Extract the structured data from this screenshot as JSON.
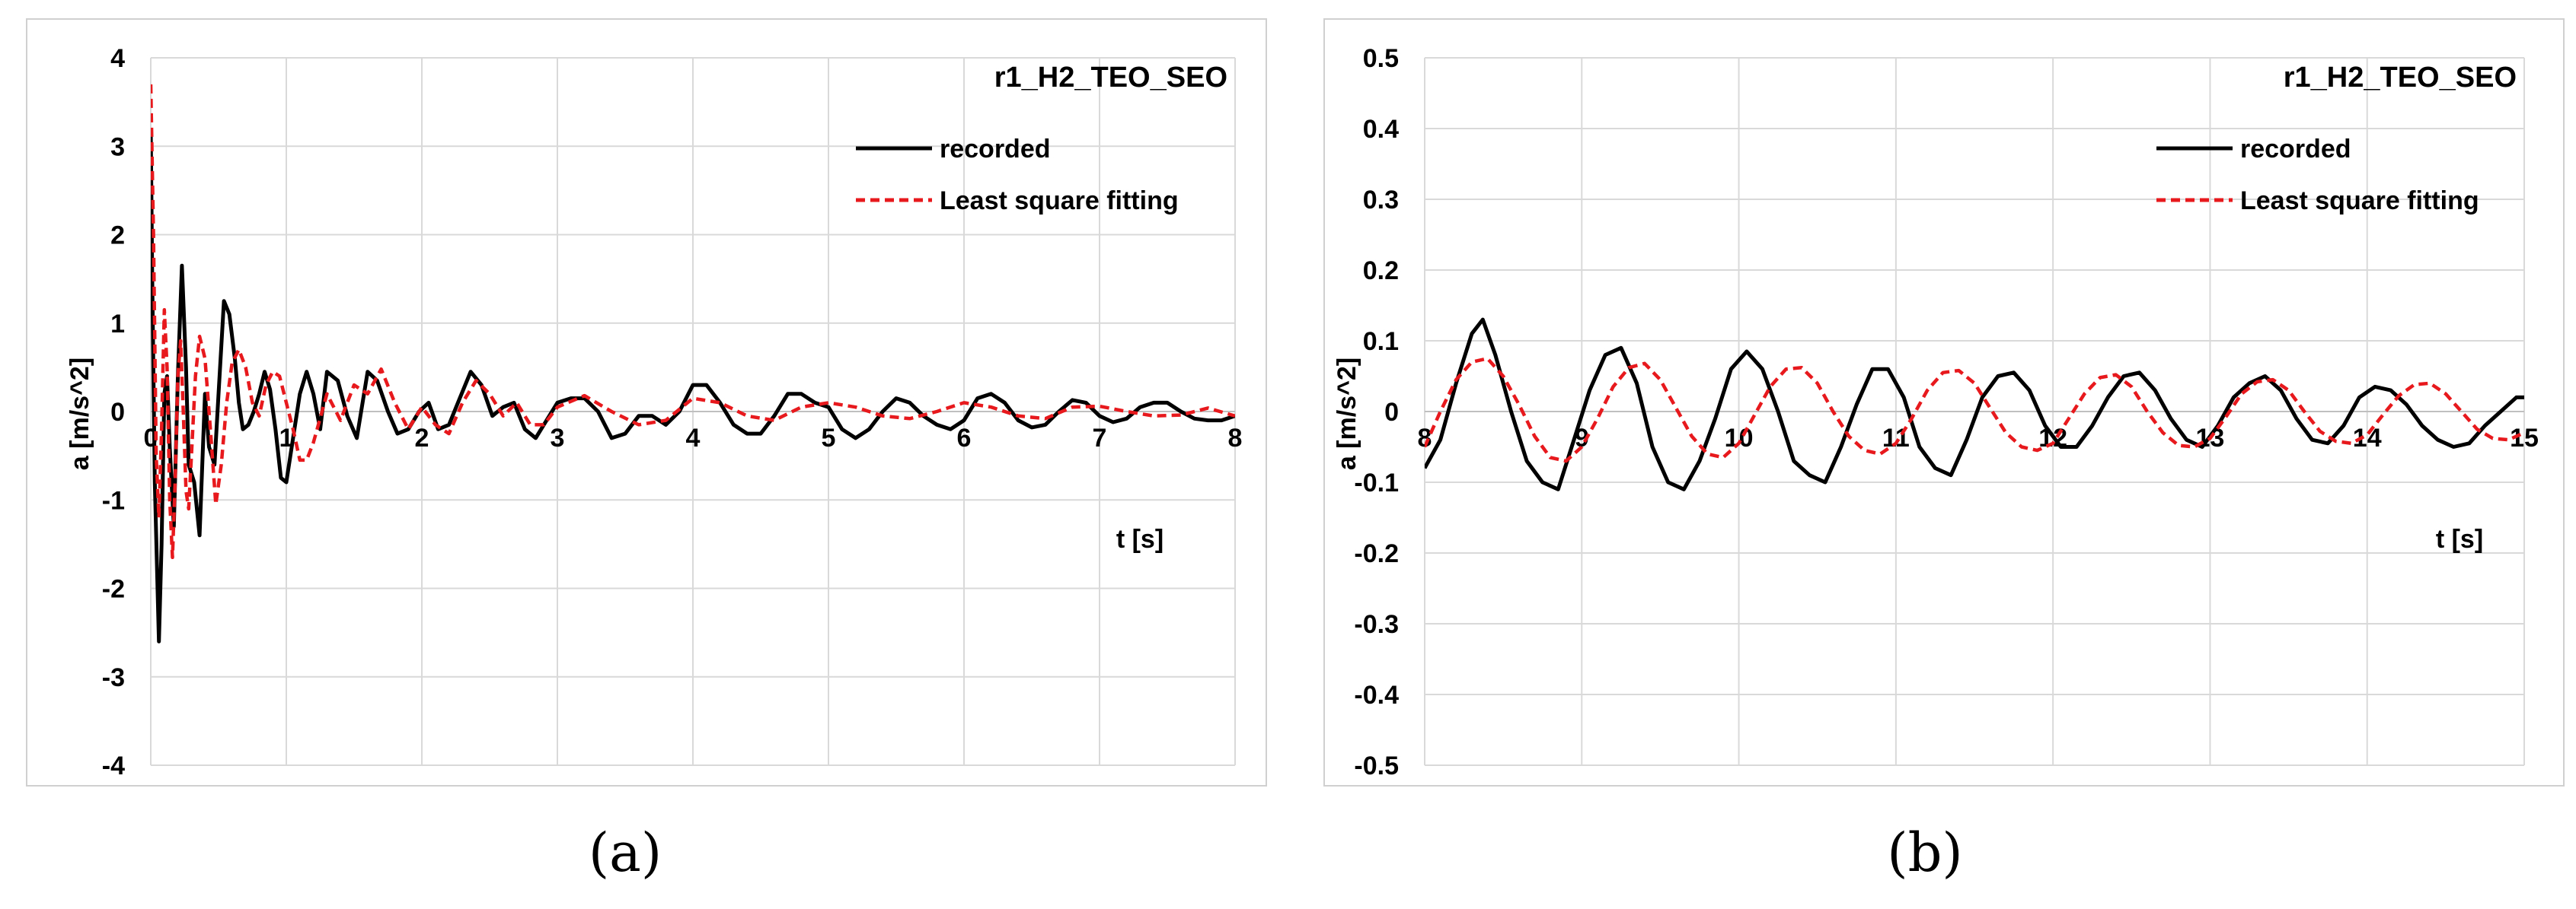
{
  "chart_data": [
    {
      "type": "line",
      "title": "r1_H2_TEO_SEO",
      "xlabel": "t [s]",
      "ylabel": "a [m/s^2]",
      "xlim": [
        0,
        8
      ],
      "ylim": [
        -4,
        4
      ],
      "xticks": [
        0,
        1,
        2,
        3,
        4,
        5,
        6,
        7,
        8
      ],
      "yticks": [
        -4,
        -3,
        -2,
        -1,
        0,
        1,
        2,
        3,
        4
      ],
      "grid": true,
      "legend_position": "top-right",
      "series": [
        {
          "name": "recorded",
          "color": "#000000",
          "style": "solid",
          "x": [
            0,
            0.01,
            0.03,
            0.06,
            0.08,
            0.1,
            0.12,
            0.14,
            0.17,
            0.2,
            0.23,
            0.26,
            0.28,
            0.32,
            0.36,
            0.4,
            0.43,
            0.47,
            0.5,
            0.54,
            0.58,
            0.62,
            0.65,
            0.68,
            0.72,
            0.76,
            0.8,
            0.84,
            0.88,
            0.92,
            0.96,
            1.0,
            1.05,
            1.1,
            1.15,
            1.2,
            1.25,
            1.3,
            1.38,
            1.45,
            1.52,
            1.6,
            1.67,
            1.75,
            1.82,
            1.9,
            1.98,
            2.05,
            2.12,
            2.2,
            2.28,
            2.36,
            2.44,
            2.52,
            2.6,
            2.68,
            2.76,
            2.84,
            2.92,
            3.0,
            3.1,
            3.2,
            3.3,
            3.4,
            3.5,
            3.6,
            3.7,
            3.8,
            3.9,
            4.0,
            4.1,
            4.2,
            4.3,
            4.4,
            4.5,
            4.6,
            4.7,
            4.8,
            4.9,
            5.0,
            5.1,
            5.2,
            5.3,
            5.4,
            5.5,
            5.6,
            5.7,
            5.8,
            5.9,
            6.0,
            6.1,
            6.2,
            6.3,
            6.4,
            6.5,
            6.6,
            6.7,
            6.8,
            6.9,
            7.0,
            7.1,
            7.2,
            7.3,
            7.4,
            7.5,
            7.6,
            7.7,
            7.8,
            7.9,
            8.0
          ],
          "y": [
            3.2,
            1.6,
            -0.8,
            -2.6,
            -1.5,
            0.2,
            0.4,
            -0.4,
            -1.3,
            0.4,
            1.65,
            0.5,
            -0.6,
            -0.8,
            -1.4,
            0.2,
            -0.4,
            -0.6,
            0.2,
            1.25,
            1.1,
            0.6,
            0.1,
            -0.2,
            -0.15,
            0.0,
            0.2,
            0.45,
            0.25,
            -0.2,
            -0.75,
            -0.8,
            -0.3,
            0.2,
            0.45,
            0.2,
            -0.2,
            0.45,
            0.35,
            -0.05,
            -0.3,
            0.45,
            0.35,
            0.0,
            -0.25,
            -0.2,
            0.0,
            0.1,
            -0.2,
            -0.15,
            0.15,
            0.45,
            0.3,
            -0.05,
            0.05,
            0.1,
            -0.2,
            -0.3,
            -0.1,
            0.1,
            0.15,
            0.15,
            0.0,
            -0.3,
            -0.25,
            -0.05,
            -0.05,
            -0.15,
            0.0,
            0.3,
            0.3,
            0.1,
            -0.15,
            -0.25,
            -0.25,
            -0.05,
            0.2,
            0.2,
            0.1,
            0.05,
            -0.2,
            -0.3,
            -0.2,
            0.0,
            0.15,
            0.1,
            -0.05,
            -0.15,
            -0.2,
            -0.1,
            0.15,
            0.2,
            0.1,
            -0.1,
            -0.18,
            -0.15,
            0.0,
            0.13,
            0.1,
            -0.05,
            -0.12,
            -0.08,
            0.05,
            0.1,
            0.1,
            0.0,
            -0.08,
            -0.1,
            -0.1,
            -0.05
          ]
        },
        {
          "name": "Least square fitting",
          "color": "#e8191d",
          "style": "dashed",
          "x": [
            0,
            0.02,
            0.04,
            0.06,
            0.08,
            0.1,
            0.12,
            0.14,
            0.16,
            0.18,
            0.2,
            0.22,
            0.24,
            0.26,
            0.28,
            0.3,
            0.33,
            0.36,
            0.4,
            0.44,
            0.48,
            0.52,
            0.56,
            0.6,
            0.65,
            0.7,
            0.75,
            0.8,
            0.85,
            0.9,
            0.95,
            1.0,
            1.05,
            1.1,
            1.15,
            1.2,
            1.3,
            1.4,
            1.5,
            1.6,
            1.7,
            1.8,
            1.9,
            2.0,
            2.1,
            2.2,
            2.3,
            2.4,
            2.5,
            2.6,
            2.7,
            2.8,
            2.9,
            3.0,
            3.2,
            3.4,
            3.6,
            3.8,
            4.0,
            4.2,
            4.4,
            4.6,
            4.8,
            5.0,
            5.2,
            5.4,
            5.6,
            5.8,
            6.0,
            6.2,
            6.4,
            6.6,
            6.8,
            7.0,
            7.2,
            7.4,
            7.6,
            7.8,
            8.0
          ],
          "y": [
            3.7,
            2.0,
            -0.5,
            -1.2,
            -0.2,
            1.15,
            0.5,
            -1.0,
            -1.65,
            -0.8,
            0.4,
            0.8,
            0.0,
            -0.9,
            -1.1,
            -0.5,
            0.4,
            0.85,
            0.6,
            -0.2,
            -1.05,
            -0.6,
            0.1,
            0.55,
            0.7,
            0.5,
            0.1,
            -0.05,
            0.3,
            0.45,
            0.4,
            0.1,
            -0.2,
            -0.55,
            -0.55,
            -0.35,
            0.2,
            -0.1,
            0.3,
            0.2,
            0.48,
            0.1,
            -0.2,
            0.05,
            -0.15,
            -0.25,
            0.1,
            0.35,
            0.2,
            -0.05,
            0.1,
            -0.15,
            -0.15,
            0.05,
            0.18,
            0.0,
            -0.15,
            -0.1,
            0.15,
            0.1,
            -0.05,
            -0.1,
            0.05,
            0.1,
            0.05,
            -0.05,
            -0.08,
            0.0,
            0.1,
            0.05,
            -0.05,
            -0.08,
            0.05,
            0.06,
            0.0,
            -0.05,
            -0.04,
            0.04,
            -0.05
          ]
        }
      ]
    },
    {
      "type": "line",
      "title": "r1_H2_TEO_SEO",
      "xlabel": "t [s]",
      "ylabel": "a [m/s^2]",
      "xlim": [
        8,
        15
      ],
      "ylim": [
        -0.5,
        0.5
      ],
      "xticks": [
        8,
        9,
        10,
        11,
        12,
        13,
        14,
        15
      ],
      "yticks": [
        -0.5,
        -0.4,
        -0.3,
        -0.2,
        -0.1,
        0,
        0.1,
        0.2,
        0.3,
        0.4,
        0.5
      ],
      "grid": true,
      "legend_position": "top-right",
      "series": [
        {
          "name": "recorded",
          "color": "#000000",
          "style": "solid",
          "x": [
            8.0,
            8.1,
            8.2,
            8.3,
            8.37,
            8.45,
            8.55,
            8.65,
            8.75,
            8.85,
            8.95,
            9.05,
            9.15,
            9.25,
            9.35,
            9.45,
            9.55,
            9.65,
            9.75,
            9.85,
            9.95,
            10.05,
            10.15,
            10.25,
            10.35,
            10.45,
            10.55,
            10.65,
            10.75,
            10.85,
            10.95,
            11.05,
            11.15,
            11.25,
            11.35,
            11.45,
            11.55,
            11.65,
            11.75,
            11.85,
            11.95,
            12.05,
            12.15,
            12.25,
            12.35,
            12.45,
            12.55,
            12.65,
            12.75,
            12.85,
            12.95,
            13.05,
            13.15,
            13.25,
            13.35,
            13.45,
            13.55,
            13.65,
            13.75,
            13.85,
            13.95,
            14.05,
            14.15,
            14.25,
            14.35,
            14.45,
            14.55,
            14.65,
            14.75,
            14.85,
            14.95,
            15.0
          ],
          "y": [
            -0.08,
            -0.04,
            0.04,
            0.11,
            0.13,
            0.08,
            0.0,
            -0.07,
            -0.1,
            -0.11,
            -0.04,
            0.03,
            0.08,
            0.09,
            0.04,
            -0.05,
            -0.1,
            -0.11,
            -0.07,
            -0.01,
            0.06,
            0.085,
            0.06,
            0.0,
            -0.07,
            -0.09,
            -0.1,
            -0.05,
            0.01,
            0.06,
            0.06,
            0.02,
            -0.05,
            -0.08,
            -0.09,
            -0.04,
            0.02,
            0.05,
            0.055,
            0.03,
            -0.02,
            -0.05,
            -0.05,
            -0.02,
            0.02,
            0.05,
            0.055,
            0.03,
            -0.01,
            -0.04,
            -0.05,
            -0.02,
            0.02,
            0.04,
            0.05,
            0.03,
            -0.01,
            -0.04,
            -0.045,
            -0.02,
            0.02,
            0.035,
            0.03,
            0.01,
            -0.02,
            -0.04,
            -0.05,
            -0.045,
            -0.02,
            0.0,
            0.02,
            0.02
          ]
        },
        {
          "name": "Least square fitting",
          "color": "#e8191d",
          "style": "dashed",
          "x": [
            8.0,
            8.1,
            8.2,
            8.3,
            8.4,
            8.5,
            8.6,
            8.7,
            8.8,
            8.9,
            9.0,
            9.1,
            9.2,
            9.3,
            9.4,
            9.5,
            9.6,
            9.7,
            9.8,
            9.9,
            10.0,
            10.1,
            10.2,
            10.3,
            10.4,
            10.5,
            10.6,
            10.7,
            10.8,
            10.9,
            11.0,
            11.1,
            11.2,
            11.3,
            11.4,
            11.5,
            11.6,
            11.7,
            11.8,
            11.9,
            12.0,
            12.1,
            12.2,
            12.3,
            12.4,
            12.5,
            12.6,
            12.7,
            12.8,
            12.9,
            13.0,
            13.1,
            13.2,
            13.3,
            13.4,
            13.5,
            13.6,
            13.7,
            13.8,
            13.9,
            14.0,
            14.1,
            14.2,
            14.3,
            14.4,
            14.5,
            14.6,
            14.7,
            14.8,
            14.9,
            15.0
          ],
          "y": [
            -0.05,
            0.0,
            0.045,
            0.07,
            0.075,
            0.05,
            0.01,
            -0.035,
            -0.065,
            -0.07,
            -0.05,
            -0.01,
            0.035,
            0.062,
            0.068,
            0.045,
            0.005,
            -0.035,
            -0.06,
            -0.065,
            -0.045,
            -0.005,
            0.035,
            0.06,
            0.062,
            0.04,
            0.0,
            -0.035,
            -0.055,
            -0.06,
            -0.045,
            -0.01,
            0.03,
            0.055,
            0.058,
            0.04,
            0.005,
            -0.03,
            -0.05,
            -0.055,
            -0.045,
            -0.01,
            0.025,
            0.048,
            0.052,
            0.035,
            0.0,
            -0.03,
            -0.048,
            -0.05,
            -0.038,
            -0.008,
            0.025,
            0.042,
            0.045,
            0.03,
            0.0,
            -0.028,
            -0.042,
            -0.045,
            -0.033,
            -0.005,
            0.022,
            0.038,
            0.04,
            0.025,
            0.0,
            -0.025,
            -0.038,
            -0.04,
            -0.03
          ]
        }
      ]
    }
  ],
  "sublabels": {
    "a": "(a)",
    "b": "(b)"
  }
}
